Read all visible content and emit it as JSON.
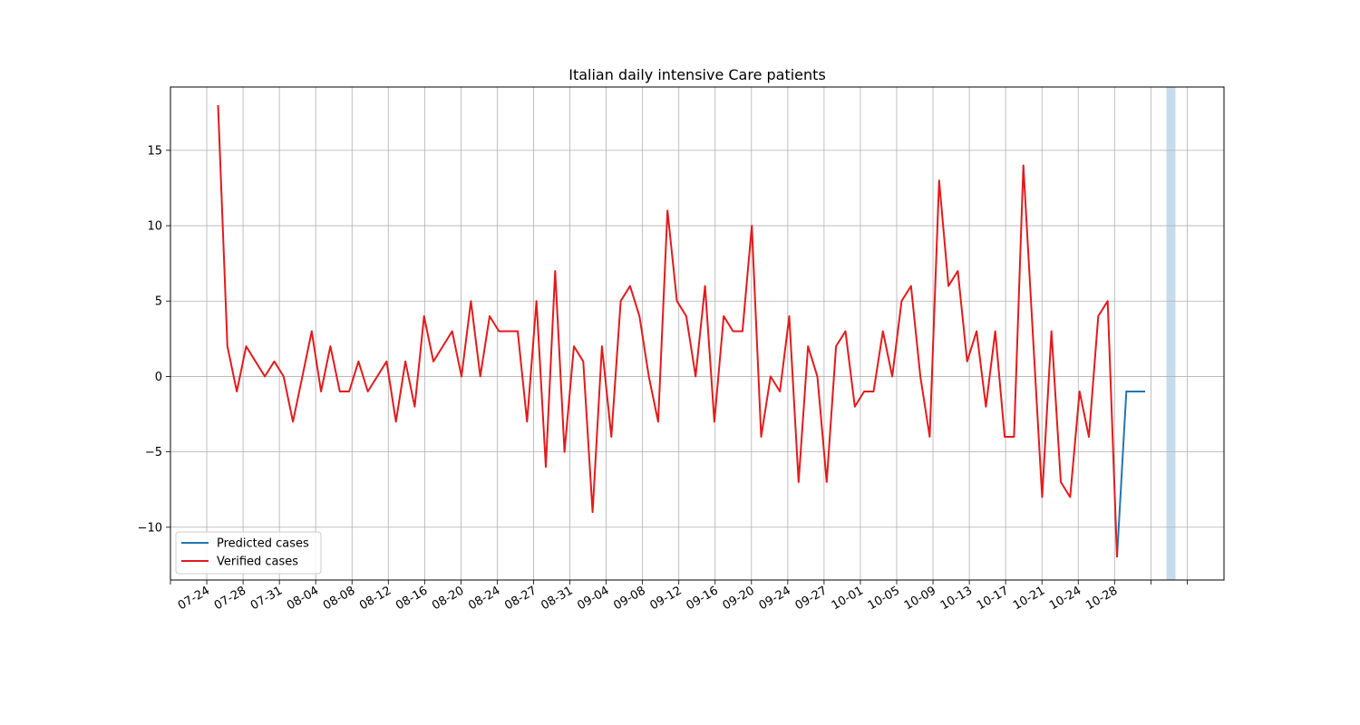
{
  "chart_data": {
    "type": "line",
    "title": "Italian daily intensive Care patients",
    "xlabel": "",
    "ylabel": "",
    "grid": true,
    "legend_position": "lower-left",
    "ylim": [
      -13.5,
      19.2
    ],
    "yticks": [
      15,
      10,
      5,
      0,
      -5,
      -10
    ],
    "ytick_labels": [
      "15",
      "10",
      "5",
      "0",
      "−5",
      "−10"
    ],
    "xlim": [
      "07-20",
      "10-28"
    ],
    "xticks": [
      "07-24",
      "07-28",
      "07-31",
      "08-04",
      "08-08",
      "08-12",
      "08-16",
      "08-20",
      "08-24",
      "08-27",
      "08-31",
      "09-04",
      "09-08",
      "09-12",
      "09-16",
      "09-20",
      "09-24",
      "09-27",
      "10-01",
      "10-05",
      "10-09",
      "10-13",
      "10-17",
      "10-21",
      "10-24",
      "10-28"
    ],
    "highlight_band": {
      "color": "#c6dcec"
    },
    "series": [
      {
        "name": "Predicted cases",
        "color": "#1f77b4",
        "values": [
          -12,
          -1,
          -1,
          -1
        ]
      },
      {
        "name": "Verified cases",
        "color": "#e31a1c",
        "values": [
          18,
          2,
          -1,
          2,
          1,
          0,
          1,
          0,
          -3,
          0,
          3,
          -1,
          2,
          -1,
          -1,
          1,
          -1,
          0,
          1,
          -3,
          1,
          -2,
          4,
          1,
          2,
          3,
          0,
          5,
          0,
          4,
          3,
          3,
          3,
          -3,
          5,
          -6,
          7,
          -5,
          2,
          1,
          -9,
          2,
          -4,
          5,
          6,
          4,
          0,
          -3,
          11,
          5,
          4,
          0,
          6,
          -3,
          4,
          3,
          3,
          10,
          -4,
          0,
          -1,
          4,
          -7,
          2,
          0,
          -7,
          2,
          3,
          -2,
          -1,
          -1,
          3,
          0,
          5,
          6,
          0,
          -4,
          13,
          6,
          7,
          1,
          3,
          -2,
          3,
          -4,
          -4,
          14,
          3,
          -8,
          3,
          -7,
          -8,
          -1,
          -4,
          4,
          5,
          -12
        ]
      }
    ]
  }
}
